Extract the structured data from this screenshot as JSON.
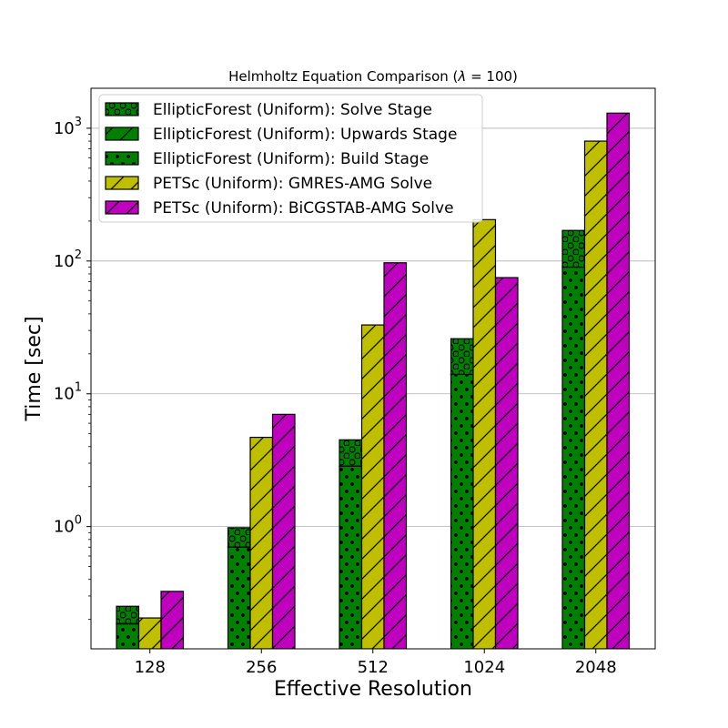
{
  "chart_data": {
    "type": "bar",
    "title": "Helmholtz Equation Comparison (λ = 100)",
    "xlabel": "Effective Resolution",
    "ylabel": "Time [sec]",
    "yscale": "log",
    "ylim": [
      0.12,
      2000
    ],
    "grid": "y-major",
    "legend_position": "top-left",
    "categories": [
      "128",
      "256",
      "512",
      "1024",
      "2048"
    ],
    "y_ticks": [
      {
        "value": 1,
        "base": "10",
        "exp": "0"
      },
      {
        "value": 10,
        "base": "10",
        "exp": "1"
      },
      {
        "value": 100,
        "base": "10",
        "exp": "2"
      },
      {
        "value": 1000,
        "base": "10",
        "exp": "3"
      }
    ],
    "stacked_series": [
      {
        "name": "EllipticForest (Uniform): Build Stage",
        "color": "#008000",
        "hatch": "dots",
        "values": [
          0.185,
          0.7,
          2.85,
          14.0,
          90.0
        ]
      },
      {
        "name": "EllipticForest (Uniform): Upwards Stage",
        "color": "#008000",
        "hatch": "slash",
        "values": [
          0.001,
          0.001,
          0.001,
          0.001,
          0.001
        ]
      },
      {
        "name": "EllipticForest (Uniform): Solve Stage",
        "color": "#008000",
        "hatch": "circles",
        "values": [
          0.065,
          0.28,
          1.65,
          12.0,
          80.0
        ]
      }
    ],
    "series": [
      {
        "name": "PETSc (Uniform): GMRES-AMG Solve",
        "color": "#bfbf00",
        "hatch": "slash",
        "values": [
          0.205,
          4.7,
          33.0,
          205.0,
          800.0
        ]
      },
      {
        "name": "PETSc (Uniform): BiCGSTAB-AMG Solve",
        "color": "#bf00bf",
        "hatch": "slash",
        "values": [
          0.325,
          7.0,
          97.0,
          75.0,
          1300.0
        ]
      }
    ],
    "legend_order": [
      "EllipticForest (Uniform): Solve Stage",
      "EllipticForest (Uniform): Upwards Stage",
      "EllipticForest (Uniform): Build Stage",
      "PETSc (Uniform): GMRES-AMG Solve",
      "PETSc (Uniform): BiCGSTAB-AMG Solve"
    ]
  }
}
